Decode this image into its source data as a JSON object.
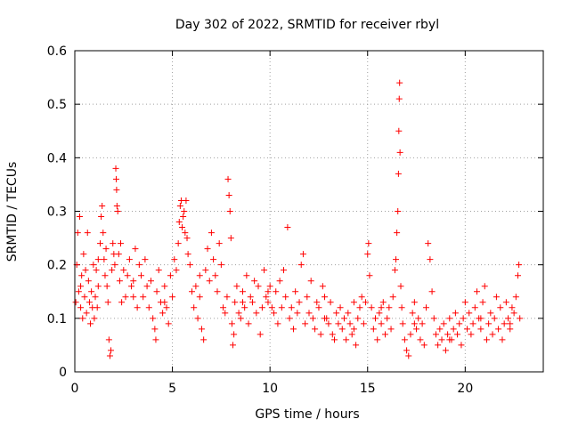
{
  "chart_data": {
    "type": "scatter",
    "title": "Day 302 of 2022, SRMTID for receiver rbyl",
    "xlabel": "GPS time / hours",
    "ylabel": "SRMTID / TECUs",
    "xlim": [
      0,
      24
    ],
    "ylim": [
      0,
      0.6
    ],
    "xticks": [
      0,
      5,
      10,
      15,
      20
    ],
    "yticks": [
      0,
      0.1,
      0.2,
      0.3,
      0.4,
      0.5,
      0.6
    ],
    "xtick_labels": [
      "0",
      "5",
      "10",
      "15",
      "20"
    ],
    "ytick_labels": [
      "0",
      "0.1",
      "0.2",
      "0.3",
      "0.4",
      "0.5",
      "0.6"
    ],
    "grid": true,
    "marker": "+",
    "color": "#ff0000",
    "series": [
      {
        "name": "SRMTID",
        "points": [
          [
            0.05,
            0.13
          ],
          [
            0.1,
            0.2
          ],
          [
            0.15,
            0.26
          ],
          [
            0.2,
            0.15
          ],
          [
            0.25,
            0.29
          ],
          [
            0.3,
            0.12
          ],
          [
            0.35,
            0.18
          ],
          [
            0.4,
            0.1
          ],
          [
            0.45,
            0.22
          ],
          [
            0.5,
            0.14
          ],
          [
            0.55,
            0.19
          ],
          [
            0.6,
            0.11
          ],
          [
            0.65,
            0.26
          ],
          [
            0.7,
            0.17
          ],
          [
            0.75,
            0.13
          ],
          [
            0.8,
            0.09
          ],
          [
            0.85,
            0.15
          ],
          [
            0.9,
            0.12
          ],
          [
            0.95,
            0.2
          ],
          [
            1.0,
            0.1
          ],
          [
            1.05,
            0.14
          ],
          [
            1.1,
            0.19
          ],
          [
            1.15,
            0.12
          ],
          [
            1.2,
            0.16
          ],
          [
            1.3,
            0.24
          ],
          [
            1.35,
            0.29
          ],
          [
            1.4,
            0.31
          ],
          [
            1.45,
            0.26
          ],
          [
            1.5,
            0.21
          ],
          [
            1.55,
            0.18
          ],
          [
            1.6,
            0.23
          ],
          [
            1.65,
            0.16
          ],
          [
            1.7,
            0.13
          ],
          [
            1.75,
            0.06
          ],
          [
            1.8,
            0.03
          ],
          [
            1.85,
            0.04
          ],
          [
            1.9,
            0.19
          ],
          [
            1.95,
            0.24
          ],
          [
            2.0,
            0.22
          ],
          [
            2.05,
            0.2
          ],
          [
            2.1,
            0.38
          ],
          [
            2.12,
            0.36
          ],
          [
            2.14,
            0.34
          ],
          [
            2.16,
            0.31
          ],
          [
            2.2,
            0.3
          ],
          [
            2.25,
            0.22
          ],
          [
            2.3,
            0.17
          ],
          [
            2.35,
            0.24
          ],
          [
            2.4,
            0.13
          ],
          [
            2.5,
            0.19
          ],
          [
            2.6,
            0.14
          ],
          [
            2.7,
            0.18
          ],
          [
            2.8,
            0.21
          ],
          [
            2.9,
            0.16
          ],
          [
            3.0,
            0.17
          ],
          [
            3.1,
            0.23
          ],
          [
            3.2,
            0.12
          ],
          [
            3.3,
            0.2
          ],
          [
            3.4,
            0.18
          ],
          [
            3.5,
            0.14
          ],
          [
            3.6,
            0.21
          ],
          [
            3.7,
            0.16
          ],
          [
            3.8,
            0.12
          ],
          [
            3.9,
            0.17
          ],
          [
            4.0,
            0.1
          ],
          [
            4.1,
            0.08
          ],
          [
            4.15,
            0.06
          ],
          [
            4.2,
            0.15
          ],
          [
            4.3,
            0.19
          ],
          [
            4.4,
            0.13
          ],
          [
            4.5,
            0.11
          ],
          [
            4.6,
            0.16
          ],
          [
            4.7,
            0.12
          ],
          [
            4.8,
            0.09
          ],
          [
            4.9,
            0.18
          ],
          [
            5.0,
            0.14
          ],
          [
            5.1,
            0.21
          ],
          [
            5.2,
            0.19
          ],
          [
            5.3,
            0.24
          ],
          [
            5.35,
            0.28
          ],
          [
            5.4,
            0.31
          ],
          [
            5.45,
            0.32
          ],
          [
            5.5,
            0.27
          ],
          [
            5.55,
            0.29
          ],
          [
            5.6,
            0.3
          ],
          [
            5.65,
            0.26
          ],
          [
            5.7,
            0.32
          ],
          [
            5.75,
            0.25
          ],
          [
            5.8,
            0.22
          ],
          [
            5.9,
            0.2
          ],
          [
            6.0,
            0.15
          ],
          [
            6.1,
            0.12
          ],
          [
            6.2,
            0.16
          ],
          [
            6.3,
            0.1
          ],
          [
            6.4,
            0.14
          ],
          [
            6.5,
            0.08
          ],
          [
            6.6,
            0.06
          ],
          [
            6.7,
            0.19
          ],
          [
            6.8,
            0.23
          ],
          [
            6.9,
            0.17
          ],
          [
            7.0,
            0.26
          ],
          [
            7.1,
            0.21
          ],
          [
            7.2,
            0.18
          ],
          [
            7.3,
            0.15
          ],
          [
            7.4,
            0.24
          ],
          [
            7.5,
            0.2
          ],
          [
            7.6,
            0.12
          ],
          [
            7.7,
            0.11
          ],
          [
            7.8,
            0.14
          ],
          [
            7.85,
            0.36
          ],
          [
            7.9,
            0.33
          ],
          [
            7.95,
            0.3
          ],
          [
            8.0,
            0.25
          ],
          [
            8.05,
            0.09
          ],
          [
            8.1,
            0.05
          ],
          [
            8.15,
            0.07
          ],
          [
            8.2,
            0.13
          ],
          [
            8.3,
            0.16
          ],
          [
            8.4,
            0.11
          ],
          [
            8.5,
            0.1
          ],
          [
            8.6,
            0.15
          ],
          [
            8.7,
            0.12
          ],
          [
            8.8,
            0.18
          ],
          [
            8.9,
            0.09
          ],
          [
            9.0,
            0.14
          ],
          [
            9.1,
            0.13
          ],
          [
            9.2,
            0.17
          ],
          [
            9.3,
            0.11
          ],
          [
            9.4,
            0.16
          ],
          [
            9.5,
            0.07
          ],
          [
            9.6,
            0.12
          ],
          [
            9.7,
            0.19
          ],
          [
            9.8,
            0.14
          ],
          [
            9.9,
            0.13
          ],
          [
            10.0,
            0.16
          ],
          [
            10.1,
            0.12
          ],
          [
            10.2,
            0.11
          ],
          [
            10.3,
            0.15
          ],
          [
            10.4,
            0.09
          ],
          [
            10.5,
            0.17
          ],
          [
            10.6,
            0.12
          ],
          [
            10.7,
            0.19
          ],
          [
            10.8,
            0.14
          ],
          [
            10.9,
            0.27
          ],
          [
            11.0,
            0.1
          ],
          [
            11.1,
            0.12
          ],
          [
            11.2,
            0.08
          ],
          [
            11.3,
            0.15
          ],
          [
            11.4,
            0.11
          ],
          [
            11.5,
            0.13
          ],
          [
            11.6,
            0.2
          ],
          [
            11.7,
            0.22
          ],
          [
            11.8,
            0.09
          ],
          [
            11.9,
            0.14
          ],
          [
            12.0,
            0.11
          ],
          [
            12.1,
            0.17
          ],
          [
            12.2,
            0.1
          ],
          [
            12.3,
            0.08
          ],
          [
            12.4,
            0.13
          ],
          [
            12.5,
            0.12
          ],
          [
            12.6,
            0.07
          ],
          [
            12.7,
            0.16
          ],
          [
            12.8,
            0.14
          ],
          [
            12.9,
            0.1
          ],
          [
            13.0,
            0.09
          ],
          [
            13.1,
            0.13
          ],
          [
            13.2,
            0.07
          ],
          [
            13.3,
            0.06
          ],
          [
            13.4,
            0.11
          ],
          [
            13.5,
            0.09
          ],
          [
            13.6,
            0.12
          ],
          [
            13.7,
            0.08
          ],
          [
            13.8,
            0.1
          ],
          [
            13.9,
            0.06
          ],
          [
            14.0,
            0.11
          ],
          [
            14.1,
            0.09
          ],
          [
            14.2,
            0.07
          ],
          [
            14.3,
            0.13
          ],
          [
            14.4,
            0.05
          ],
          [
            14.5,
            0.1
          ],
          [
            14.6,
            0.12
          ],
          [
            14.7,
            0.14
          ],
          [
            14.8,
            0.09
          ],
          [
            14.9,
            0.13
          ],
          [
            15.0,
            0.22
          ],
          [
            15.05,
            0.24
          ],
          [
            15.1,
            0.18
          ],
          [
            15.2,
            0.12
          ],
          [
            15.3,
            0.08
          ],
          [
            15.4,
            0.1
          ],
          [
            15.5,
            0.06
          ],
          [
            15.6,
            0.11
          ],
          [
            15.7,
            0.09
          ],
          [
            15.8,
            0.13
          ],
          [
            15.9,
            0.07
          ],
          [
            16.0,
            0.1
          ],
          [
            16.1,
            0.12
          ],
          [
            16.2,
            0.08
          ],
          [
            16.3,
            0.14
          ],
          [
            16.4,
            0.19
          ],
          [
            16.45,
            0.21
          ],
          [
            16.5,
            0.26
          ],
          [
            16.55,
            0.3
          ],
          [
            16.58,
            0.37
          ],
          [
            16.6,
            0.45
          ],
          [
            16.62,
            0.51
          ],
          [
            16.64,
            0.54
          ],
          [
            16.66,
            0.41
          ],
          [
            16.7,
            0.16
          ],
          [
            16.75,
            0.12
          ],
          [
            16.8,
            0.09
          ],
          [
            16.9,
            0.06
          ],
          [
            17.0,
            0.04
          ],
          [
            17.1,
            0.03
          ],
          [
            17.2,
            0.07
          ],
          [
            17.3,
            0.11
          ],
          [
            17.4,
            0.13
          ],
          [
            17.5,
            0.08
          ],
          [
            17.6,
            0.1
          ],
          [
            17.7,
            0.06
          ],
          [
            17.8,
            0.09
          ],
          [
            17.9,
            0.05
          ],
          [
            18.0,
            0.12
          ],
          [
            18.1,
            0.24
          ],
          [
            18.2,
            0.21
          ],
          [
            18.3,
            0.15
          ],
          [
            18.4,
            0.1
          ],
          [
            18.5,
            0.07
          ],
          [
            18.6,
            0.05
          ],
          [
            18.7,
            0.08
          ],
          [
            18.8,
            0.06
          ],
          [
            18.9,
            0.09
          ],
          [
            19.0,
            0.04
          ],
          [
            19.1,
            0.07
          ],
          [
            19.2,
            0.1
          ],
          [
            19.3,
            0.06
          ],
          [
            19.4,
            0.08
          ],
          [
            19.5,
            0.11
          ],
          [
            19.6,
            0.07
          ],
          [
            19.7,
            0.09
          ],
          [
            19.8,
            0.05
          ],
          [
            19.9,
            0.1
          ],
          [
            20.0,
            0.13
          ],
          [
            20.1,
            0.08
          ],
          [
            20.2,
            0.11
          ],
          [
            20.3,
            0.07
          ],
          [
            20.4,
            0.09
          ],
          [
            20.5,
            0.12
          ],
          [
            20.6,
            0.15
          ],
          [
            20.7,
            0.1
          ],
          [
            20.8,
            0.08
          ],
          [
            20.9,
            0.13
          ],
          [
            21.0,
            0.16
          ],
          [
            21.1,
            0.06
          ],
          [
            21.2,
            0.09
          ],
          [
            21.3,
            0.11
          ],
          [
            21.4,
            0.07
          ],
          [
            21.5,
            0.1
          ],
          [
            21.6,
            0.14
          ],
          [
            21.7,
            0.08
          ],
          [
            21.8,
            0.12
          ],
          [
            21.9,
            0.06
          ],
          [
            22.0,
            0.09
          ],
          [
            22.1,
            0.13
          ],
          [
            22.2,
            0.1
          ],
          [
            22.3,
            0.08
          ],
          [
            22.4,
            0.12
          ],
          [
            22.5,
            0.11
          ],
          [
            22.6,
            0.14
          ],
          [
            22.7,
            0.18
          ],
          [
            22.75,
            0.2
          ],
          [
            22.8,
            0.1
          ],
          [
            0.3,
            0.16
          ],
          [
            1.2,
            0.21
          ],
          [
            3.0,
            0.14
          ],
          [
            4.6,
            0.13
          ],
          [
            6.4,
            0.18
          ],
          [
            8.6,
            0.13
          ],
          [
            9.9,
            0.15
          ],
          [
            12.8,
            0.1
          ],
          [
            14.3,
            0.08
          ],
          [
            15.7,
            0.12
          ],
          [
            17.4,
            0.09
          ],
          [
            19.2,
            0.06
          ],
          [
            20.8,
            0.1
          ],
          [
            22.3,
            0.09
          ]
        ]
      }
    ]
  }
}
